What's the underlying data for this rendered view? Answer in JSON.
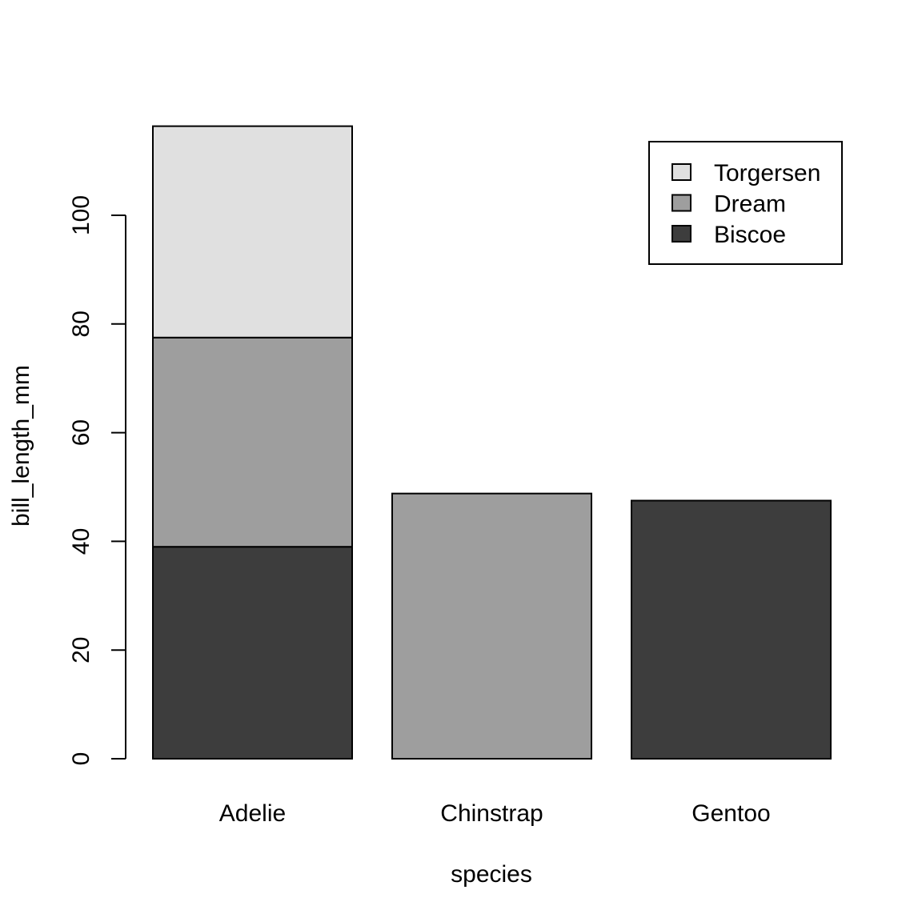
{
  "chart_data": {
    "type": "bar",
    "stacked": true,
    "categories": [
      "Adelie",
      "Chinstrap",
      "Gentoo"
    ],
    "series": [
      {
        "name": "Biscoe",
        "color": "#3d3d3d",
        "values": [
          39.0,
          0,
          47.5
        ]
      },
      {
        "name": "Dream",
        "color": "#9e9e9e",
        "values": [
          38.5,
          48.8,
          0
        ]
      },
      {
        "name": "Torgersen",
        "color": "#e0e0e0",
        "values": [
          38.9,
          0,
          0
        ]
      }
    ],
    "legend_order": [
      "Torgersen",
      "Dream",
      "Biscoe"
    ],
    "legend_position": "top-right",
    "xlabel": "species",
    "ylabel": "bill_length_mm",
    "yticks": [
      0,
      20,
      40,
      60,
      80,
      100
    ],
    "ylim": [
      0,
      116.4
    ],
    "grid": false
  }
}
